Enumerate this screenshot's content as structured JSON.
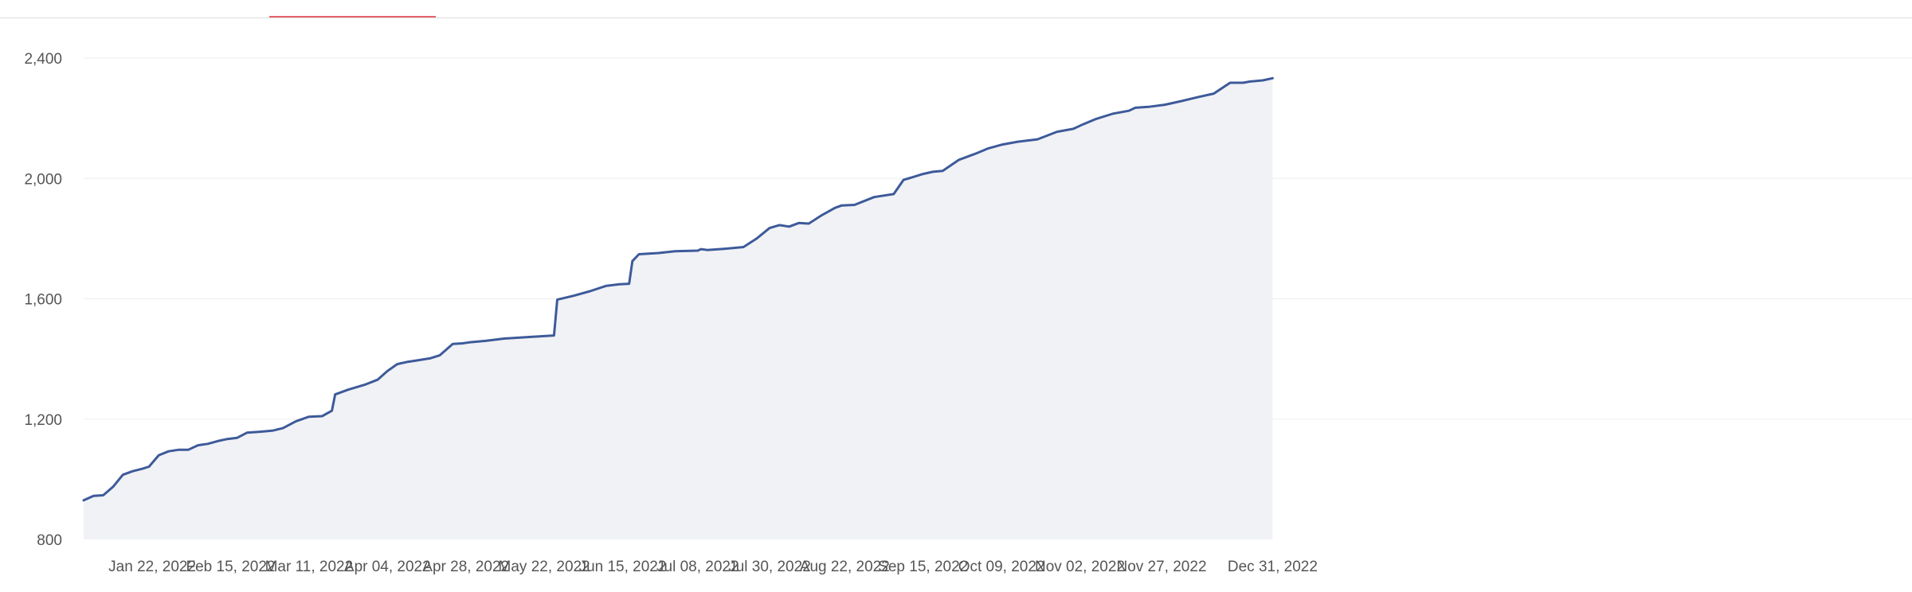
{
  "chart_data": {
    "type": "area",
    "title": "",
    "xlabel": "",
    "ylabel": "",
    "ylim": [
      800,
      2400
    ],
    "y_ticks": [
      "800",
      "1,200",
      "1,600",
      "2,000",
      "2,400"
    ],
    "x_ticks": [
      "Jan 22, 2022",
      "Feb 15, 2022",
      "Mar 11, 2022",
      "Apr 04, 2022",
      "Apr 28, 2022",
      "May 22, 2022",
      "Jun 15, 2022",
      "Jul 08, 2022",
      "Jul 30, 2022",
      "Aug 22, 2022",
      "Sep 15, 2022",
      "Oct 09, 2022",
      "Nov 02, 2022",
      "Nov 27, 2022",
      "Dec 31, 2022"
    ],
    "grid": true,
    "legend": "none",
    "series": [
      {
        "color": "#3d5a99",
        "fill": "#f1f2f6",
        "x": [
          "Jan 01, 2022",
          "Jan 04, 2022",
          "Jan 07, 2022",
          "Jan 10, 2022",
          "Jan 13, 2022",
          "Jan 16, 2022",
          "Jan 19, 2022",
          "Jan 21, 2022",
          "Jan 24, 2022",
          "Jan 27, 2022",
          "Jan 30, 2022",
          "Feb 02, 2022",
          "Feb 05, 2022",
          "Feb 08, 2022",
          "Feb 11, 2022",
          "Feb 14, 2022",
          "Feb 17, 2022",
          "Feb 20, 2022",
          "Feb 24, 2022",
          "Feb 28, 2022",
          "Mar 03, 2022",
          "Mar 07, 2022",
          "Mar 11, 2022",
          "Mar 15, 2022",
          "Mar 18, 2022",
          "Mar 19, 2022",
          "Mar 23, 2022",
          "Mar 28, 2022",
          "Apr 01, 2022",
          "Apr 04, 2022",
          "Apr 07, 2022",
          "Apr 10, 2022",
          "Apr 13, 2022",
          "Apr 17, 2022",
          "Apr 20, 2022",
          "Apr 24, 2022",
          "Apr 27, 2022",
          "Apr 29, 2022",
          "May 04, 2022",
          "May 10, 2022",
          "May 16, 2022",
          "May 22, 2022",
          "May 25, 2022",
          "May 26, 2022",
          "May 31, 2022",
          "Jun 05, 2022",
          "Jun 10, 2022",
          "Jun 14, 2022",
          "Jun 17, 2022",
          "Jun 18, 2022",
          "Jun 20, 2022",
          "Jun 26, 2022",
          "Jul 01, 2022",
          "Jul 08, 2022",
          "Jul 09, 2022",
          "Jul 11, 2022",
          "Jul 16, 2022",
          "Jul 22, 2022",
          "Jul 26, 2022",
          "Jul 30, 2022",
          "Aug 02, 2022",
          "Aug 05, 2022",
          "Aug 08, 2022",
          "Aug 11, 2022",
          "Aug 15, 2022",
          "Aug 19, 2022",
          "Aug 21, 2022",
          "Aug 25, 2022",
          "Aug 31, 2022",
          "Sep 06, 2022",
          "Sep 09, 2022",
          "Sep 12, 2022",
          "Sep 15, 2022",
          "Sep 18, 2022",
          "Sep 21, 2022",
          "Sep 26, 2022",
          "Oct 01, 2022",
          "Oct 05, 2022",
          "Oct 09, 2022",
          "Oct 14, 2022",
          "Oct 20, 2022",
          "Oct 26, 2022",
          "Oct 31, 2022",
          "Nov 03, 2022",
          "Nov 07, 2022",
          "Nov 12, 2022",
          "Nov 17, 2022",
          "Nov 19, 2022",
          "Nov 23, 2022",
          "Nov 28, 2022",
          "Dec 03, 2022",
          "Dec 08, 2022",
          "Dec 13, 2022",
          "Dec 18, 2022",
          "Dec 22, 2022",
          "Dec 24, 2022",
          "Dec 28, 2022",
          "Dec 31, 2022"
        ],
        "values": [
          930,
          945,
          947,
          975,
          1015,
          1027,
          1035,
          1042,
          1080,
          1093,
          1098,
          1098,
          1113,
          1118,
          1127,
          1134,
          1138,
          1155,
          1158,
          1162,
          1170,
          1193,
          1208,
          1210,
          1228,
          1282,
          1298,
          1314,
          1331,
          1360,
          1383,
          1390,
          1395,
          1402,
          1412,
          1450,
          1452,
          1455,
          1460,
          1468,
          1472,
          1476,
          1478,
          1597,
          1610,
          1625,
          1643,
          1648,
          1650,
          1725,
          1748,
          1752,
          1758,
          1760,
          1765,
          1762,
          1766,
          1772,
          1800,
          1835,
          1845,
          1840,
          1852,
          1850,
          1878,
          1902,
          1910,
          1912,
          1938,
          1948,
          1995,
          2005,
          2015,
          2022,
          2025,
          2062,
          2082,
          2100,
          2112,
          2122,
          2130,
          2155,
          2165,
          2180,
          2198,
          2215,
          2225,
          2235,
          2238,
          2245,
          2257,
          2270,
          2282,
          2318,
          2318,
          2322,
          2326,
          2333
        ]
      }
    ]
  }
}
